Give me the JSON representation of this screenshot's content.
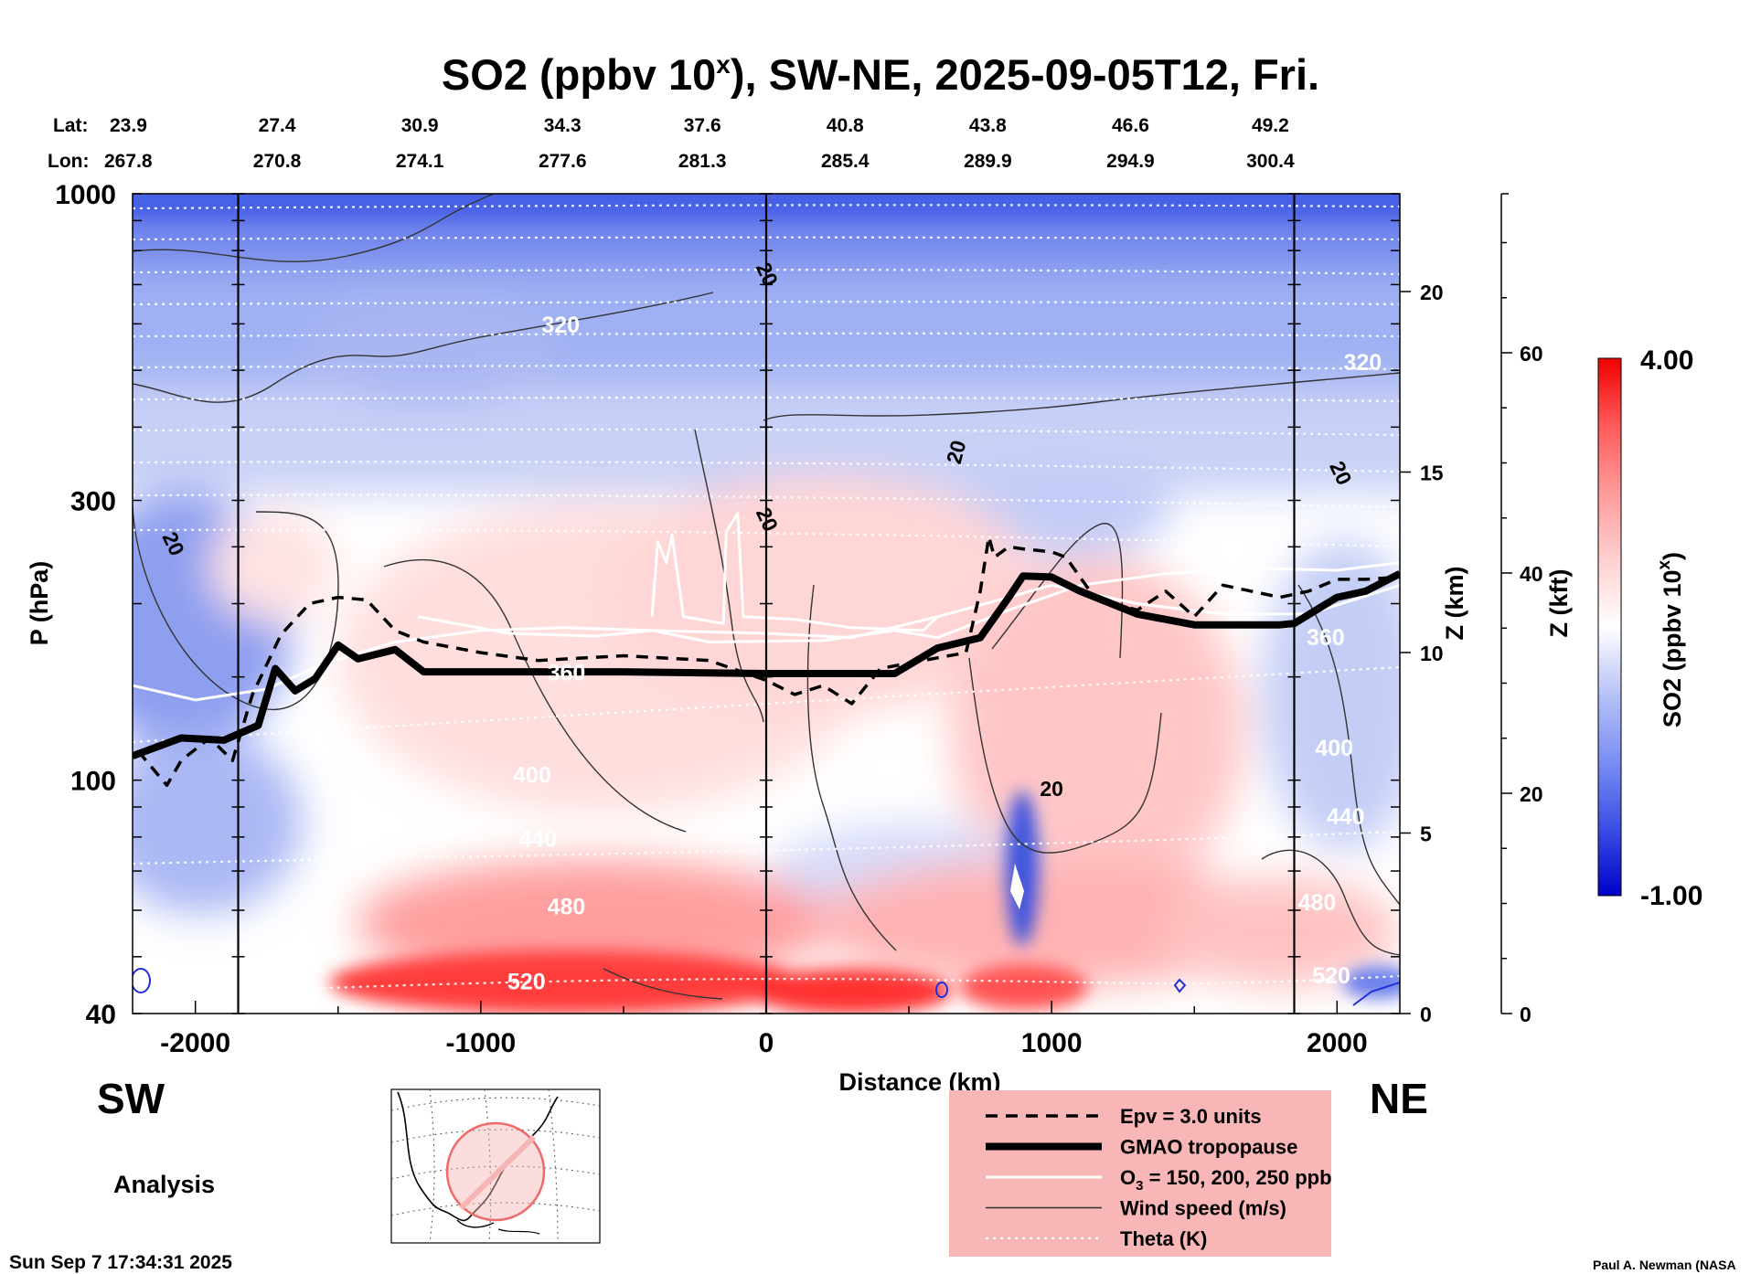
{
  "chart_data": {
    "type": "heatmap",
    "title": "SO2 (ppbv 10",
    "title_sup": "x",
    "title_rest": "), SW-NE, 2025-09-05T12, Fri.",
    "xlabel": "Distance (km)",
    "ylabel": "P (hPa)",
    "y2label": "Z (km)",
    "y3label": "Z (kft)",
    "xlim": [
      -2220,
      2220
    ],
    "ylim_hpa": [
      1000,
      40
    ],
    "x_ticks": [
      {
        "value": -2000,
        "label": "-2000"
      },
      {
        "value": -1000,
        "label": "-1000"
      },
      {
        "value": 0,
        "label": "0"
      },
      {
        "value": 1000,
        "label": "1000"
      },
      {
        "value": 2000,
        "label": "2000"
      }
    ],
    "y_ticks": [
      {
        "value": 1000,
        "label": "1000"
      },
      {
        "value": 300,
        "label": "300"
      },
      {
        "value": 100,
        "label": "100"
      },
      {
        "value": 40,
        "label": "40"
      }
    ],
    "z_km_ticks": [
      {
        "value": 0,
        "label": "0"
      },
      {
        "value": 5,
        "label": "5"
      },
      {
        "value": 10,
        "label": "10"
      },
      {
        "value": 15,
        "label": "15"
      },
      {
        "value": 20,
        "label": "20"
      }
    ],
    "z_kft_ticks": [
      {
        "value": 0,
        "label": "0"
      },
      {
        "value": 20,
        "label": "20"
      },
      {
        "value": 40,
        "label": "40"
      },
      {
        "value": 60,
        "label": "60"
      }
    ],
    "lat_label": "Lat:",
    "lon_label": "Lon:",
    "stations": [
      {
        "distance": -2220,
        "lat": "23.9",
        "lon": "267.8"
      },
      {
        "distance": -1720,
        "lat": "27.4",
        "lon": "270.8"
      },
      {
        "distance": -1220,
        "lat": "30.9",
        "lon": "274.1"
      },
      {
        "distance": -720,
        "lat": "34.3",
        "lon": "277.6"
      },
      {
        "distance": -230,
        "lat": "37.6",
        "lon": "281.3"
      },
      {
        "distance": 270,
        "lat": "40.8",
        "lon": "285.4"
      },
      {
        "distance": 770,
        "lat": "43.8",
        "lon": "289.9"
      },
      {
        "distance": 1270,
        "lat": "46.6",
        "lon": "294.9"
      },
      {
        "distance": 1760,
        "lat": "49.2",
        "lon": "300.4"
      }
    ],
    "vertical_lines_km": [
      -1850,
      0,
      1850
    ],
    "colorbar": {
      "label": "SO2 (ppbv 10",
      "label_sup": "x",
      "label_end": ")",
      "min": -1.0,
      "max": 4.0,
      "min_label": "-1.00",
      "max_label": "4.00",
      "colors": [
        "#0000c8",
        "#3a4ee6",
        "#7b8ef2",
        "#b7c2f7",
        "#ffffff",
        "#ffd0d0",
        "#ff9a9a",
        "#ff5a5a",
        "#f00000"
      ]
    },
    "tropopause_hpa": [
      [
        -2220,
        110
      ],
      [
        -2050,
        118
      ],
      [
        -1900,
        117
      ],
      [
        -1780,
        124
      ],
      [
        -1720,
        155
      ],
      [
        -1650,
        142
      ],
      [
        -1580,
        149
      ],
      [
        -1500,
        170
      ],
      [
        -1430,
        161
      ],
      [
        -1300,
        167
      ],
      [
        -1200,
        153
      ],
      [
        -1000,
        153
      ],
      [
        -500,
        153
      ],
      [
        0,
        152
      ],
      [
        450,
        152
      ],
      [
        600,
        168
      ],
      [
        750,
        175
      ],
      [
        850,
        205
      ],
      [
        900,
        223
      ],
      [
        1000,
        222
      ],
      [
        1100,
        210
      ],
      [
        1300,
        192
      ],
      [
        1500,
        184
      ],
      [
        1800,
        184
      ],
      [
        1850,
        185
      ],
      [
        2000,
        205
      ],
      [
        2100,
        210
      ],
      [
        2220,
        225
      ]
    ],
    "epv_hpa": [
      [
        -2200,
        112
      ],
      [
        -2100,
        98
      ],
      [
        -2050,
        108
      ],
      [
        -1950,
        118
      ],
      [
        -1870,
        108
      ],
      [
        -1800,
        140
      ],
      [
        -1700,
        177
      ],
      [
        -1600,
        200
      ],
      [
        -1500,
        205
      ],
      [
        -1400,
        203
      ],
      [
        -1300,
        180
      ],
      [
        -1200,
        172
      ],
      [
        -1000,
        165
      ],
      [
        -800,
        160
      ],
      [
        -500,
        163
      ],
      [
        -200,
        160
      ],
      [
        0,
        148
      ],
      [
        100,
        140
      ],
      [
        200,
        145
      ],
      [
        300,
        135
      ],
      [
        400,
        155
      ],
      [
        550,
        160
      ],
      [
        700,
        165
      ],
      [
        750,
        210
      ],
      [
        780,
        260
      ],
      [
        800,
        240
      ],
      [
        850,
        250
      ],
      [
        900,
        248
      ],
      [
        1000,
        245
      ],
      [
        1050,
        240
      ],
      [
        1150,
        205
      ],
      [
        1300,
        195
      ],
      [
        1400,
        210
      ],
      [
        1500,
        190
      ],
      [
        1600,
        215
      ],
      [
        1700,
        210
      ],
      [
        1800,
        205
      ],
      [
        1900,
        210
      ],
      [
        2000,
        220
      ],
      [
        2100,
        220
      ],
      [
        2220,
        222
      ]
    ],
    "ozone_contours": [
      {
        "value": 150,
        "points": [
          [
            -2220,
            145
          ],
          [
            -2000,
            137
          ],
          [
            -1750,
            143
          ],
          [
            -1550,
            158
          ],
          [
            -1300,
            172
          ],
          [
            -1000,
            180
          ],
          [
            -700,
            182
          ],
          [
            -400,
            180
          ],
          [
            0,
            178
          ],
          [
            300,
            175
          ],
          [
            600,
            190
          ],
          [
            850,
            205
          ],
          [
            1000,
            215
          ],
          [
            1300,
            200
          ],
          [
            1600,
            192
          ],
          [
            1900,
            192
          ],
          [
            2220,
            215
          ]
        ]
      },
      {
        "value": 200,
        "points": [
          [
            -1220,
            190
          ],
          [
            -900,
            178
          ],
          [
            -600,
            176
          ],
          [
            -400,
            180
          ],
          [
            -200,
            172
          ],
          [
            200,
            173
          ],
          [
            450,
            180
          ],
          [
            600,
            175
          ],
          [
            850,
            195
          ],
          [
            1100,
            215
          ],
          [
            1400,
            225
          ],
          [
            1700,
            230
          ],
          [
            2000,
            228
          ],
          [
            2220,
            235
          ]
        ]
      },
      {
        "value": 250,
        "points": [
          [
            -400,
            190
          ],
          [
            -380,
            255
          ],
          [
            -350,
            235
          ],
          [
            -330,
            262
          ],
          [
            -290,
            190
          ],
          [
            -150,
            185
          ],
          [
            -140,
            265
          ],
          [
            -100,
            285
          ],
          [
            -80,
            190
          ],
          [
            100,
            188
          ],
          [
            300,
            182
          ],
          [
            550,
            180
          ],
          [
            600,
            190
          ]
        ]
      }
    ],
    "theta_labels": [
      {
        "value": "520",
        "x": -840,
        "p": 44
      },
      {
        "value": "480",
        "x": -700,
        "p": 59
      },
      {
        "value": "440",
        "x": -800,
        "p": 77
      },
      {
        "value": "400",
        "x": -820,
        "p": 99
      },
      {
        "value": "360",
        "x": -700,
        "p": 148
      },
      {
        "value": "320",
        "x": -720,
        "p": 580
      },
      {
        "value": "520",
        "x": 1980,
        "p": 45
      },
      {
        "value": "480",
        "x": 1930,
        "p": 60
      },
      {
        "value": "440",
        "x": 2030,
        "p": 84
      },
      {
        "value": "400",
        "x": 1990,
        "p": 110
      },
      {
        "value": "360",
        "x": 1960,
        "p": 170
      },
      {
        "value": "320",
        "x": 2090,
        "p": 500
      }
    ],
    "wind_labels": [
      {
        "value": "20",
        "x": 1000,
        "p": 94
      },
      {
        "value": "20",
        "x": -2100,
        "p": 250
      },
      {
        "value": "20",
        "x": -20,
        "p": 275
      },
      {
        "value": "20",
        "x": 690,
        "p": 360
      },
      {
        "value": "20",
        "x": 1990,
        "p": 330
      },
      {
        "value": "20",
        "x": -20,
        "p": 720
      }
    ],
    "legend": [
      {
        "style": "dashed",
        "label": "Epv = 3.0 units"
      },
      {
        "style": "thick",
        "label": "GMAO tropopause"
      },
      {
        "style": "white",
        "label": "O",
        "sub": "3",
        "label_rest": " = 150, 200, 250 ppb"
      },
      {
        "style": "thin",
        "label": "Wind speed (m/s)"
      },
      {
        "style": "dotted",
        "label": "Theta (K)"
      }
    ],
    "dir_left": "SW",
    "dir_right": "NE",
    "mode_label": "Analysis",
    "timestamp": "Sun Sep  7 17:34:31 2025",
    "credit": "Paul A. Newman (NASA"
  }
}
